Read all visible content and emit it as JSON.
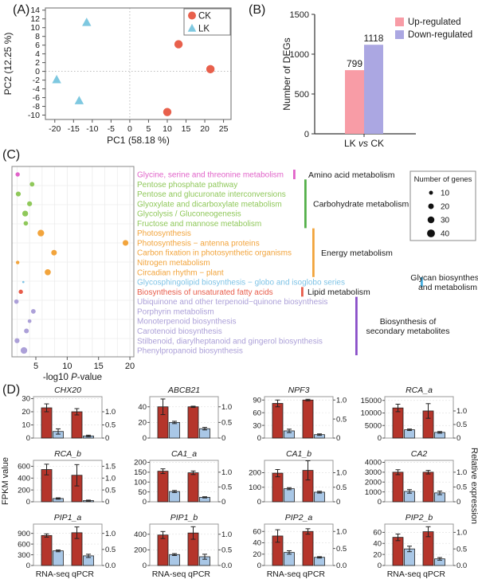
{
  "chart_data": [
    {
      "panel_label": "(A)",
      "type": "scatter",
      "xlabel": "PC1 (58.18 %)",
      "ylabel": "PC2 (12.25 %)",
      "xlim": [
        -22.5,
        27
      ],
      "ylim": [
        -11,
        14.5
      ],
      "xticks": [
        -20,
        -15,
        -10,
        -5,
        0,
        5,
        10,
        15,
        20,
        25
      ],
      "yticks": [
        -10,
        -8,
        -6,
        -4,
        -2,
        0,
        2,
        4,
        6,
        8,
        10,
        12,
        14
      ],
      "refline_x": 0,
      "refline_y": 0,
      "series": [
        {
          "name": "CK",
          "marker": "circle",
          "color": "#E8604C",
          "points": [
            [
              13,
              6.2
            ],
            [
              21.5,
              0.5
            ],
            [
              10,
              -9.3
            ]
          ]
        },
        {
          "name": "LK",
          "marker": "triangle",
          "color": "#7EC8E0",
          "points": [
            [
              -11.5,
              11.2
            ],
            [
              -19.5,
              -1.9
            ],
            [
              -13.5,
              -6.7
            ]
          ]
        }
      ]
    },
    {
      "panel_label": "(B)",
      "type": "bar",
      "ylabel": "Number of DEGs",
      "ylim": [
        0,
        1500
      ],
      "yticks": [
        0,
        500,
        1000,
        1500
      ],
      "category_parts": [
        "LK ",
        "vs",
        " CK"
      ],
      "series": [
        {
          "name": "Up-regulated",
          "color": "#F89CA6",
          "value": 799
        },
        {
          "name": "Down-regulated",
          "color": "#ABA7E2",
          "value": 1118
        }
      ]
    },
    {
      "panel_label": "(C)",
      "type": "dot",
      "xlabel_parts": [
        "-log10 ",
        "P",
        "-value"
      ],
      "xticks": [
        5,
        10,
        15,
        20
      ],
      "xlim": [
        1.1,
        20.6
      ],
      "size_legend": {
        "title": "Number of genes",
        "sizes": [
          10,
          20,
          30,
          40
        ]
      },
      "groups": [
        {
          "name": "Amino acid metabolism",
          "lines": [
            "Amino acid metabolism"
          ],
          "color": "#E163C9",
          "row_start": 0,
          "row_end": 0
        },
        {
          "name": "Carbohydrate metabolism",
          "lines": [
            "Carbohydrate metabolism"
          ],
          "color": "#55B04A",
          "row_start": 1,
          "row_end": 5
        },
        {
          "name": "Energy metabolism",
          "lines": [
            "Energy metabolism"
          ],
          "color": "#F2A43C",
          "row_start": 6,
          "row_end": 10
        },
        {
          "name": "Glycan biosynthesis and metabolism",
          "lines": [
            "Glycan biosynthesis",
            "and metabolism"
          ],
          "color": "#45AEE0",
          "row_start": 11,
          "row_end": 11
        },
        {
          "name": "Lipid metabolism",
          "lines": [
            "Lipid metabolism"
          ],
          "color": "#E85C4A",
          "row_start": 12,
          "row_end": 12
        },
        {
          "name": "Biosynthesis of secondary metabolites",
          "lines": [
            "Biosynthesis of",
            "secondary metabolites"
          ],
          "color": "#8A4FC8",
          "row_start": 13,
          "row_end": 18
        }
      ],
      "rows": [
        {
          "pathway": "Glycine, serine and threonine metabolism",
          "value": 2.1,
          "genes": 12,
          "color": "#E163C9"
        },
        {
          "pathway": "Pentose phosphate pathway",
          "value": 4.4,
          "genes": 14,
          "color": "#8FC85A"
        },
        {
          "pathway": "Pentose and glucuronate interconversions",
          "value": 2.2,
          "genes": 16,
          "color": "#8FC85A"
        },
        {
          "pathway": "Glyoxylate and dicarboxylate metabolism",
          "value": 4.0,
          "genes": 16,
          "color": "#8FC85A"
        },
        {
          "pathway": "Glycolysis / Gluconeogenesis",
          "value": 3.3,
          "genes": 22,
          "color": "#8FC85A"
        },
        {
          "pathway": "Fructose and mannose metabolism",
          "value": 3.4,
          "genes": 13,
          "color": "#8FC85A"
        },
        {
          "pathway": "Photosynthesis",
          "value": 5.8,
          "genes": 28,
          "color": "#F2A43C"
        },
        {
          "pathway": "Photosynthesis − antenna proteins",
          "value": 19.3,
          "genes": 21,
          "color": "#F2A43C"
        },
        {
          "pathway": "Carbon fixation in photosynthetic organisms",
          "value": 7.9,
          "genes": 20,
          "color": "#F2A43C"
        },
        {
          "pathway": "Nitrogen metabolism",
          "value": 2.1,
          "genes": 8,
          "color": "#F2A43C"
        },
        {
          "pathway": "Circadian rhythm − plant",
          "value": 6.9,
          "genes": 24,
          "color": "#F2A43C"
        },
        {
          "pathway": "Glycosphingolipid biosynthesis − globo and isoglobo series",
          "value": 3.0,
          "genes": 3,
          "color": "#7EC3E6"
        },
        {
          "pathway": "Biosynthesis of unsaturated fatty acids",
          "value": 2.6,
          "genes": 12,
          "color": "#E85C4A"
        },
        {
          "pathway": "Ubiquinone and other terpenoid−quinone biosynthesis",
          "value": 1.9,
          "genes": 13,
          "color": "#ACA0D8"
        },
        {
          "pathway": "Porphyrin metabolism",
          "value": 4.6,
          "genes": 14,
          "color": "#ACA0D8"
        },
        {
          "pathway": "Monoterpenoid biosynthesis",
          "value": 4.0,
          "genes": 9,
          "color": "#ACA0D8"
        },
        {
          "pathway": "Carotenoid biosynthesis",
          "value": 3.5,
          "genes": 15,
          "color": "#ACA0D8"
        },
        {
          "pathway": "Stilbenoid, diarylheptanoid and gingerol biosynthesis",
          "value": 2.0,
          "genes": 16,
          "color": "#ACA0D8"
        },
        {
          "pathway": "Phenylpropanoid biosynthesis",
          "value": 3.1,
          "genes": 28,
          "color": "#ACA0D8"
        }
      ]
    },
    {
      "panel_label": "(D)",
      "type": "grouped-bar-grid",
      "left_axis_label": "FPKM value",
      "right_axis_label": "Relative expression",
      "categories": [
        "RNA-seq",
        "qPCR"
      ],
      "bar_colors": [
        "#B5352B",
        "#A9C7E6"
      ],
      "genes": [
        {
          "name": "CHX20",
          "left_ticks": [
            0,
            10,
            20,
            30
          ],
          "left_max": 31.5,
          "right_ticks": [
            "0",
            "0.5",
            "1.0"
          ],
          "right_tick_values": [
            0,
            0.5,
            1.0
          ],
          "right_scale": 20,
          "rna_ck": 23,
          "rna_ck_err": 3,
          "rna_lk": 5,
          "rna_lk_err": 2,
          "qpcr_ck": 1.0,
          "qpcr_ck_err": 0.12,
          "qpcr_lk": 0.08,
          "qpcr_lk_err": 0.03
        },
        {
          "name": "ABCB21",
          "left_ticks": [
            0,
            20,
            40
          ],
          "left_max": 53,
          "right_ticks": [
            "0",
            "0.5",
            "1.0"
          ],
          "right_tick_values": [
            0,
            0.5,
            1.0
          ],
          "right_scale": 40,
          "rna_ck": 40,
          "rna_ck_err": 10,
          "rna_lk": 20,
          "rna_lk_err": 1.5,
          "qpcr_ck": 1.0,
          "qpcr_ck_err": 0.02,
          "qpcr_lk": 0.3,
          "qpcr_lk_err": 0.04
        },
        {
          "name": "NPF3",
          "left_ticks": [
            0,
            30,
            60,
            90
          ],
          "left_max": 98,
          "right_ticks": [
            "0",
            "0.5",
            "1.0"
          ],
          "right_tick_values": [
            0,
            0.5,
            1.0
          ],
          "right_scale": 90,
          "rna_ck": 82,
          "rna_ck_err": 8,
          "rna_lk": 17,
          "rna_lk_err": 4,
          "qpcr_ck": 1.0,
          "qpcr_ck_err": 0.02,
          "qpcr_lk": 0.09,
          "qpcr_lk_err": 0.02
        },
        {
          "name": "RCA_a",
          "left_ticks": [
            0,
            5000,
            10000,
            15000
          ],
          "left_max": 16500,
          "right_ticks": [
            "0",
            "0.5",
            "1.0"
          ],
          "right_tick_values": [
            0,
            0.5,
            1.0
          ],
          "right_scale": 10800,
          "rna_ck": 12000,
          "rna_ck_err": 1500,
          "rna_lk": 3300,
          "rna_lk_err": 300,
          "qpcr_ck": 1.0,
          "qpcr_ck_err": 0.27,
          "qpcr_lk": 0.21,
          "qpcr_lk_err": 0.03
        },
        {
          "name": "RCA_b",
          "left_ticks": [
            0,
            200,
            400,
            600
          ],
          "left_max": 700,
          "right_ticks": [
            "0",
            "0.5",
            "1.0",
            "1.5"
          ],
          "right_tick_values": [
            0,
            0.5,
            1.0,
            1.5
          ],
          "right_scale": 400,
          "rna_ck": 545,
          "rna_ck_err": 90,
          "rna_lk": 55,
          "rna_lk_err": 12,
          "qpcr_ck": 1.12,
          "qpcr_ck_err": 0.45,
          "qpcr_lk": 0.05,
          "qpcr_lk_err": 0.02
        },
        {
          "name": "CA1_a",
          "left_ticks": [
            0,
            50,
            100,
            150,
            200
          ],
          "left_max": 210,
          "right_ticks": [
            "0",
            "0.5",
            "1.0"
          ],
          "right_tick_values": [
            0,
            0.5,
            1.0
          ],
          "right_scale": 150,
          "rna_ck": 155,
          "rna_ck_err": 12,
          "rna_lk": 52,
          "rna_lk_err": 5,
          "qpcr_ck": 0.98,
          "qpcr_ck_err": 0.06,
          "qpcr_lk": 0.15,
          "qpcr_lk_err": 0.02
        },
        {
          "name": "CA1_b",
          "left_ticks": [
            0,
            100,
            200
          ],
          "left_max": 285,
          "right_ticks": [
            "0",
            "0.5",
            "1.0"
          ],
          "right_tick_values": [
            0,
            0.5,
            1.0
          ],
          "right_scale": 200,
          "rna_ck": 197,
          "rna_ck_err": 25,
          "rna_lk": 90,
          "rna_lk_err": 7,
          "qpcr_ck": 1.08,
          "qpcr_ck_err": 0.33,
          "qpcr_lk": 0.33,
          "qpcr_lk_err": 0.03
        },
        {
          "name": "CA2",
          "left_ticks": [
            0,
            1000,
            2000,
            3000,
            4000
          ],
          "left_max": 4200,
          "right_ticks": [
            "0",
            "0.5",
            "1.0"
          ],
          "right_tick_values": [
            0,
            0.5,
            1.0
          ],
          "right_scale": 3000,
          "rna_ck": 3000,
          "rna_ck_err": 250,
          "rna_lk": 1050,
          "rna_lk_err": 180,
          "qpcr_ck": 1.0,
          "qpcr_ck_err": 0.06,
          "qpcr_lk": 0.3,
          "qpcr_lk_err": 0.06
        },
        {
          "name": "PIP1_a",
          "left_ticks": [
            0,
            300,
            600,
            900
          ],
          "left_max": 1160,
          "right_ticks": [
            "0.0",
            "0.5",
            "1.0"
          ],
          "right_tick_values": [
            0,
            0.5,
            1.0
          ],
          "right_scale": 900,
          "rna_ck": 840,
          "rna_ck_err": 45,
          "rna_lk": 410,
          "rna_lk_err": 25,
          "qpcr_ck": 1.02,
          "qpcr_ck_err": 0.18,
          "qpcr_lk": 0.3,
          "qpcr_lk_err": 0.05
        },
        {
          "name": "PIP1_b",
          "left_ticks": [
            0,
            200,
            400
          ],
          "left_max": 530,
          "right_ticks": [
            "0.0",
            "0.5",
            "1.0"
          ],
          "right_tick_values": [
            0,
            0.5,
            1.0
          ],
          "right_scale": 400,
          "rna_ck": 390,
          "rna_ck_err": 45,
          "rna_lk": 140,
          "rna_lk_err": 12,
          "qpcr_ck": 1.04,
          "qpcr_ck_err": 0.2,
          "qpcr_lk": 0.28,
          "qpcr_lk_err": 0.08
        },
        {
          "name": "PIP2_a",
          "left_ticks": [
            0,
            20,
            40,
            60
          ],
          "left_max": 73,
          "right_ticks": [
            "0.0",
            "0.5",
            "1.0"
          ],
          "right_tick_values": [
            0,
            0.5,
            1.0
          ],
          "right_scale": 60,
          "rna_ck": 52,
          "rna_ck_err": 11,
          "rna_lk": 23,
          "rna_lk_err": 3,
          "qpcr_ck": 1.0,
          "qpcr_ck_err": 0.08,
          "qpcr_lk": 0.24,
          "qpcr_lk_err": 0.02
        },
        {
          "name": "PIP2_b",
          "left_ticks": [
            0,
            20,
            40,
            60
          ],
          "left_max": 75,
          "right_ticks": [
            "0.0",
            "0.5",
            "1.0"
          ],
          "right_tick_values": [
            0,
            0.5,
            1.0
          ],
          "right_scale": 60,
          "rna_ck": 51,
          "rna_ck_err": 6,
          "rna_lk": 30,
          "rna_lk_err": 5,
          "qpcr_ck": 1.02,
          "qpcr_ck_err": 0.15,
          "qpcr_lk": 0.2,
          "qpcr_lk_err": 0.04
        }
      ]
    }
  ]
}
